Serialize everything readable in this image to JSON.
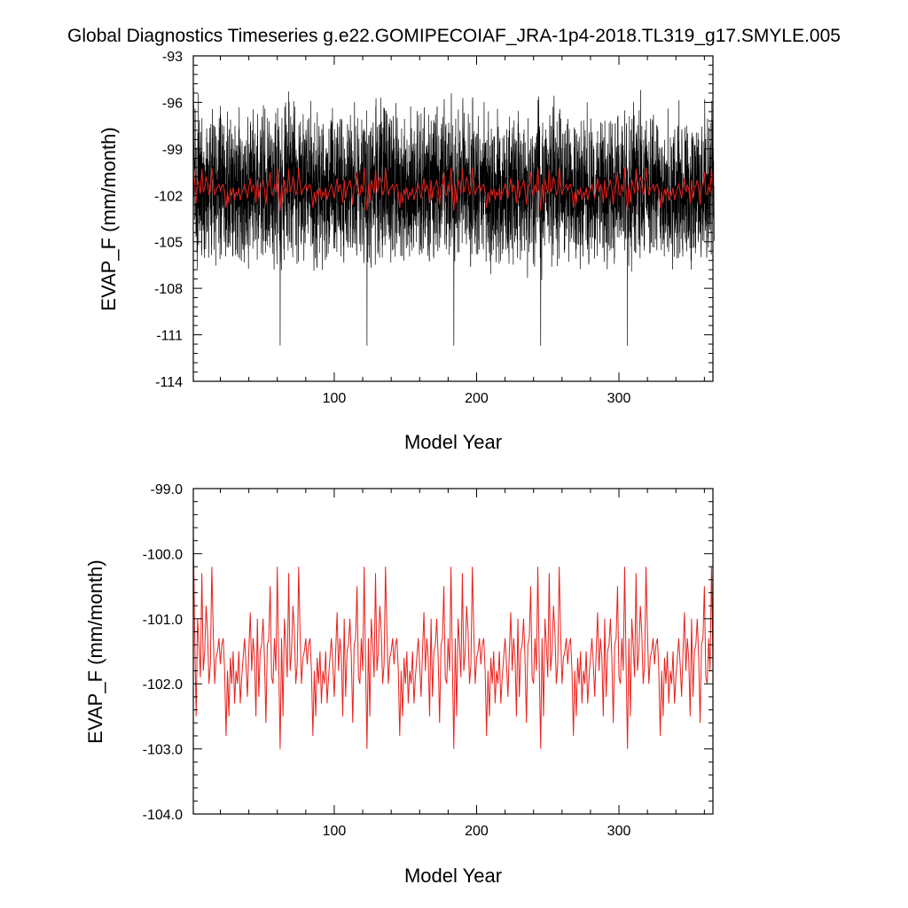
{
  "title": "Global Diagnostics Timeseries g.e22.GOMIPECOIAF_JRA-1p4-2018.TL319_g17.SMYLE.005",
  "chart_data": [
    {
      "type": "line",
      "xlabel": "Model Year",
      "ylabel": "EVAP_F (mm/month)",
      "xlim": [
        1,
        366
      ],
      "ylim": [
        -114,
        -93
      ],
      "xticks": [
        100,
        200,
        300
      ],
      "xtick_labels": [
        "100",
        "200",
        "300"
      ],
      "yticks": [
        -93,
        -96,
        -99,
        -102,
        -105,
        -108,
        -111,
        -114
      ],
      "ytick_labels": [
        "-93",
        "-96",
        "-99",
        "-102",
        "-105",
        "-108",
        "-111",
        "-114"
      ],
      "grid": false,
      "legend": "none",
      "series": [
        {
          "color": "#000000",
          "description": "monthly values",
          "x_range": [
            1,
            366
          ],
          "typical_range": [
            -107.5,
            -97.5
          ],
          "overall_range": [
            -112,
            -94.8
          ]
        },
        {
          "color": "#e8201c",
          "description": "annual mean",
          "x_range": [
            1,
            366
          ],
          "typical_range": [
            -103,
            -100.3
          ]
        }
      ]
    },
    {
      "type": "line",
      "xlabel": "Model Year",
      "ylabel": "EVAP_F (mm/month)",
      "xlim": [
        1,
        366
      ],
      "ylim": [
        -104,
        -99
      ],
      "xticks": [
        100,
        200,
        300
      ],
      "xtick_labels": [
        "100",
        "200",
        "300"
      ],
      "yticks": [
        -99,
        -100,
        -101,
        -102,
        -103,
        -104
      ],
      "ytick_labels": [
        "-99.0",
        "-100.0",
        "-101.0",
        "-102.0",
        "-103.0",
        "-104.0"
      ],
      "grid": false,
      "legend": "none",
      "series": [
        {
          "color": "#e8201c",
          "description": "annual mean",
          "cycle_length_years": 61,
          "x_range": [
            1,
            366
          ],
          "start_value": -99.6,
          "cycle_years": [
            1,
            2,
            3,
            4,
            5,
            6,
            7,
            8,
            9,
            10,
            11,
            12,
            13,
            14,
            15,
            16,
            17,
            18,
            19,
            20,
            21,
            22,
            23,
            24,
            25,
            26,
            27,
            28,
            29,
            30,
            31,
            32,
            33,
            34,
            35,
            36,
            37,
            38,
            39,
            40,
            41,
            42,
            43,
            44,
            45,
            46,
            47,
            48,
            49,
            50,
            51,
            52,
            53,
            54,
            55,
            56,
            57,
            58,
            59,
            60,
            61
          ],
          "cycle_values": [
            -101.3,
            -102.5,
            -101.0,
            -101.4,
            -101.9,
            -100.3,
            -101.8,
            -101.5,
            -100.8,
            -101.2,
            -102.0,
            -101.7,
            -100.2,
            -101.2,
            -102.0,
            -101.6,
            -101.5,
            -101.3,
            -101.7,
            -101.4,
            -101.3,
            -101.8,
            -102.8,
            -101.8,
            -102.5,
            -101.6,
            -102.0,
            -101.5,
            -102.3,
            -101.8,
            -102.0,
            -101.5,
            -102.3,
            -101.9,
            -101.6,
            -101.3,
            -101.7,
            -102.2,
            -101.5,
            -100.9,
            -101.8,
            -101.3,
            -101.6,
            -102.5,
            -101.0,
            -102.2,
            -101.5,
            -101.4,
            -101.0,
            -101.6,
            -102.6,
            -101.4,
            -101.3,
            -100.5,
            -101.9,
            -102.0,
            -101.3,
            -101.8,
            -100.2,
            -101.7,
            -103.0
          ]
        }
      ]
    }
  ]
}
